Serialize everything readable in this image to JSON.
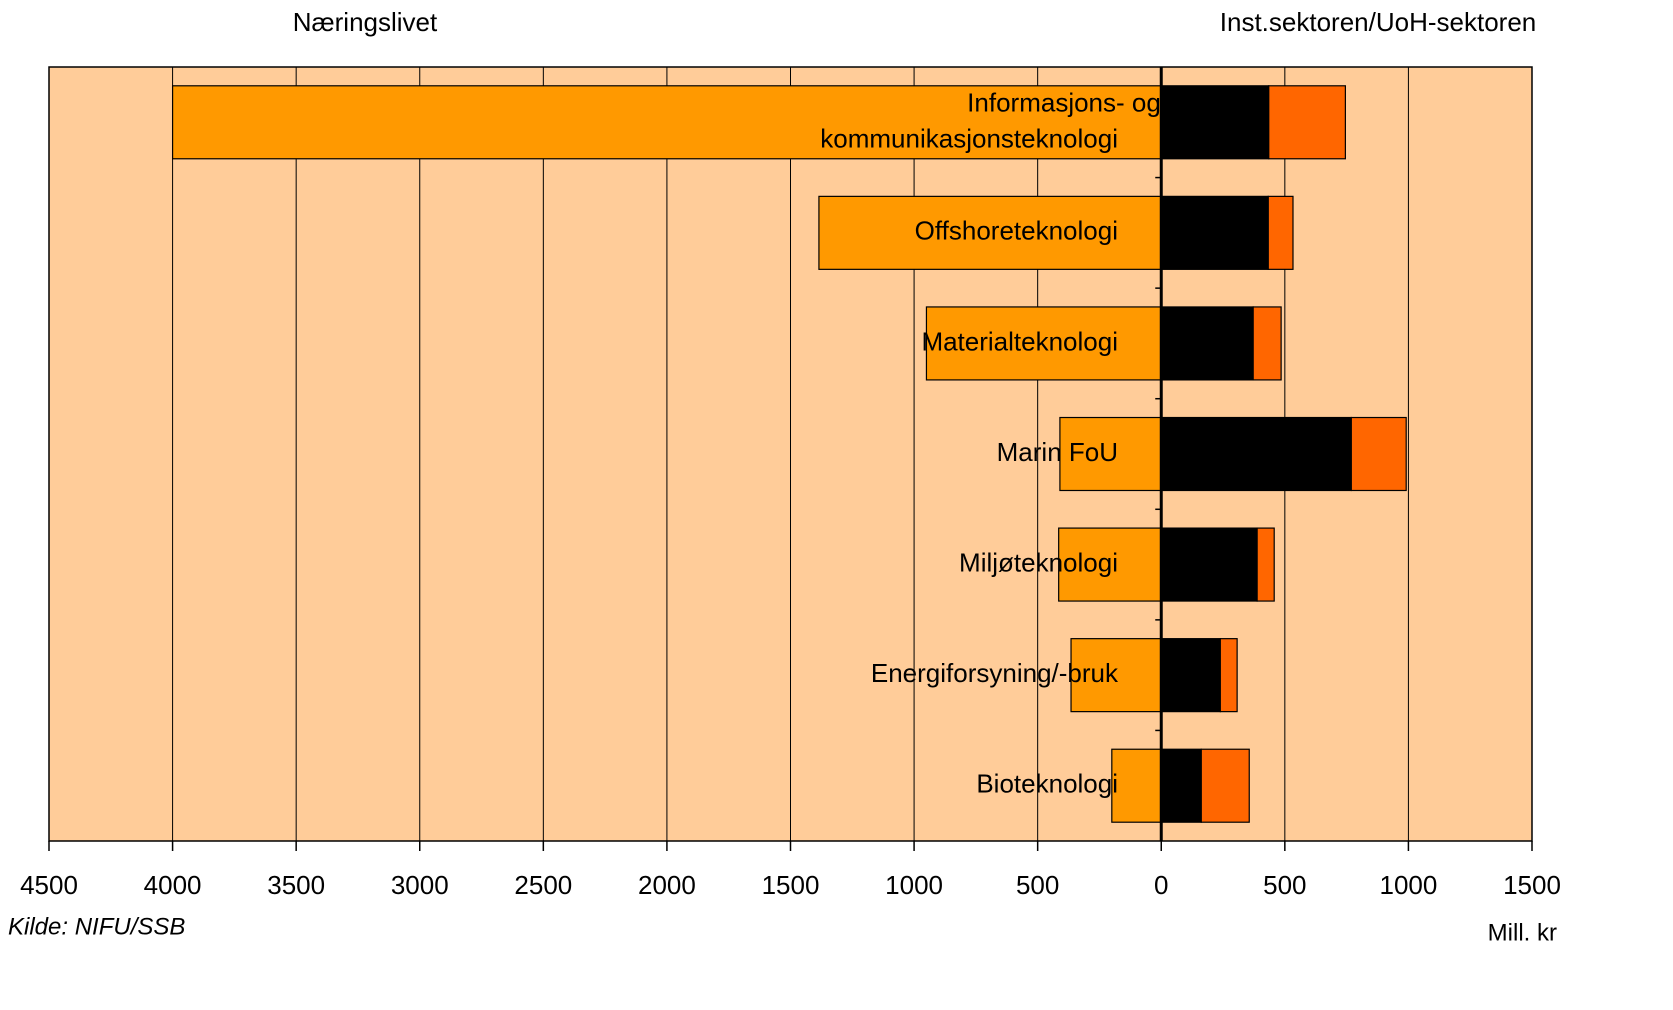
{
  "chart_data": {
    "type": "diverging-stacked-bar",
    "left_header": "Næringslivet",
    "right_header": "Inst.sektoren/UoH-sektoren",
    "categories": [
      "Informasjons- og\nkommunikasjonsteknologi",
      "Offshoreteknologi",
      "Materialteknologi",
      "Marin FoU",
      "Miljøteknologi",
      "Energiforsyning/-bruk",
      "Bioteknologi"
    ],
    "series": [
      {
        "color": "#FF9900",
        "values": [
          -4000,
          -1385,
          -950,
          -410,
          -415,
          -365,
          -200
        ]
      },
      {
        "color": "#000000",
        "values": [
          435,
          433,
          372,
          769,
          388,
          239,
          162
        ]
      },
      {
        "color": "#FF6600",
        "values": [
          310,
          100,
          113,
          222,
          69,
          68,
          194
        ]
      }
    ],
    "xlim": [
      -4500,
      1500
    ],
    "xticks": [
      {
        "value": -4500,
        "label": "4500"
      },
      {
        "value": -4000,
        "label": "4000"
      },
      {
        "value": -3500,
        "label": "3500"
      },
      {
        "value": -3000,
        "label": "3000"
      },
      {
        "value": -2500,
        "label": "2500"
      },
      {
        "value": -2000,
        "label": "2000"
      },
      {
        "value": -1500,
        "label": "1500"
      },
      {
        "value": -1000,
        "label": "1000"
      },
      {
        "value": -500,
        "label": "500"
      },
      0,
      500,
      1000,
      1500
    ],
    "grid": true,
    "plot_background": "#FFCC99",
    "source": "Kilde: NIFU/SSB",
    "unit": "Mill. kr"
  }
}
